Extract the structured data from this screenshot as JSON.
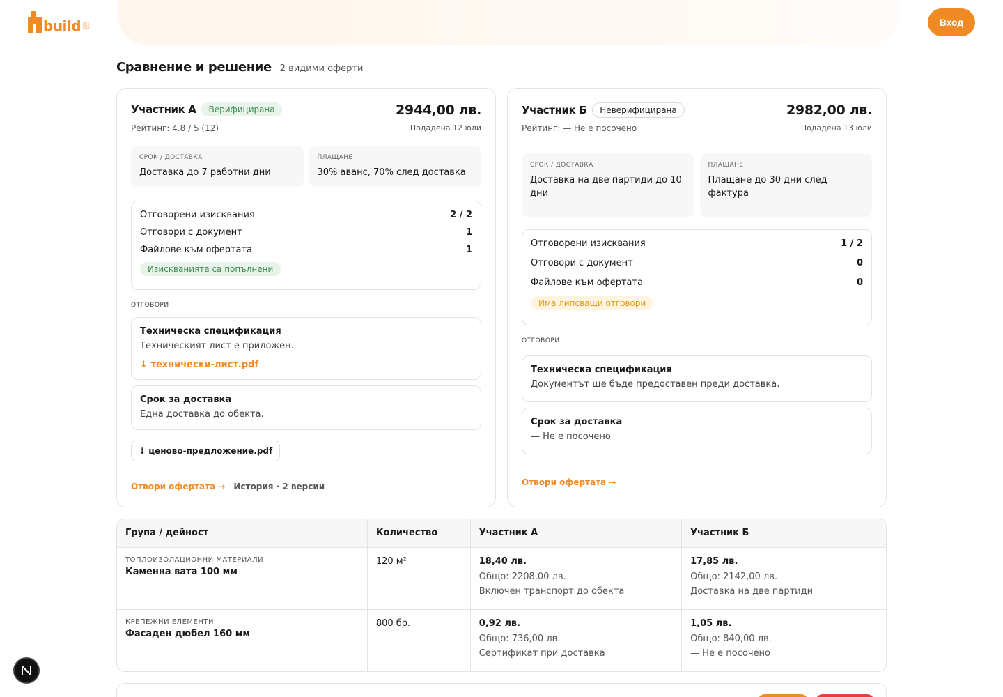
{
  "header": {
    "logo_text": "build",
    "logo_tag": "船",
    "login_label": "Вход"
  },
  "section": {
    "title": "Сравнение и решение",
    "count_label": "2 видими оферти"
  },
  "offers": [
    {
      "name": "Участник А",
      "badge": "Верифицирана",
      "rating": "Рейтинг: 4.8 / 5 (12)",
      "price": "2944,00 лв.",
      "submitted": "Подадена 12 юли",
      "delivery_label": "Срок / доставка",
      "delivery_value": "Доставка до 7 работни дни",
      "payment_label": "Плащане",
      "payment_value": "30% аванс, 70% след доставка",
      "req_rows": [
        {
          "label": "Отговорени изисквания",
          "value": "2 / 2"
        },
        {
          "label": "Отговори с документ",
          "value": "1"
        },
        {
          "label": "Файлове към офертата",
          "value": "1"
        }
      ],
      "status_pill": "Изискванията са попълнени",
      "answers_label": "Отговори",
      "answers": [
        {
          "title": "Техническа спецификация",
          "text": "Техническият лист е приложен.",
          "file": "↓ технически-лист.pdf"
        },
        {
          "title": "Срок за доставка",
          "text": "Една доставка до обекта."
        }
      ],
      "file_button": "↓ ценово-предложение.pdf",
      "open_label": "Отвори офертата →",
      "history_label": "История · 2 версии"
    },
    {
      "name": "Участник Б",
      "badge": "Неверифицирана",
      "rating": "Рейтинг: — Не е посочено",
      "price": "2982,00 лв.",
      "submitted": "Подадена 13 юли",
      "delivery_label": "Срок / доставка",
      "delivery_value": "Доставка на две партиди до 10 дни",
      "payment_label": "Плащане",
      "payment_value": "Плащане до 30 дни след фактура",
      "req_rows": [
        {
          "label": "Отговорени изисквания",
          "value": "1 / 2"
        },
        {
          "label": "Отговори с документ",
          "value": "0"
        },
        {
          "label": "Файлове към офертата",
          "value": "0"
        }
      ],
      "status_pill": "Има липсващи отговори",
      "answers_label": "Отговори",
      "answers": [
        {
          "title": "Техническа спецификация",
          "text": "Документът ще бъде предоставен преди доставка."
        },
        {
          "title": "Срок за доставка",
          "text": "— Не е посочено"
        }
      ],
      "open_label": "Отвори офертата →"
    }
  ],
  "table": {
    "headers": [
      "Група / дейност",
      "Количество",
      "Участник А",
      "Участник Б"
    ],
    "rows": [
      {
        "category": "Топлоизолационни материали",
        "item": "Каменна вата 100 мм",
        "qty": "120 м²",
        "a_price": "18,40 лв.",
        "a_total": "Общо: 2208,00 лв.",
        "a_note": "Включен транспорт до обекта",
        "b_price": "17,85 лв.",
        "b_total": "Общо: 2142,00 лв.",
        "b_note": "Доставка на две партиди"
      },
      {
        "category": "Крепежни елементи",
        "item": "Фасаден дюбел 160 мм",
        "qty": "800 бр.",
        "a_price": "0,92 лв.",
        "a_total": "Общо: 736,00 лв.",
        "a_note": "Сертификат при доставка",
        "b_price": "1,05 лв.",
        "b_total": "Общо: 840,00 лв.",
        "b_note": "— Не е посочено"
      }
    ]
  },
  "colors": {
    "accent": "#f08a24",
    "verified_bg": "#e8f3ea",
    "verified_text": "#3f8c55",
    "warning_bg": "#fff4df",
    "warning_text": "#e39a20",
    "danger": "#e0413a"
  },
  "icons": {
    "floating_badge": "n-logo-icon",
    "download": "arrow-down-icon"
  }
}
